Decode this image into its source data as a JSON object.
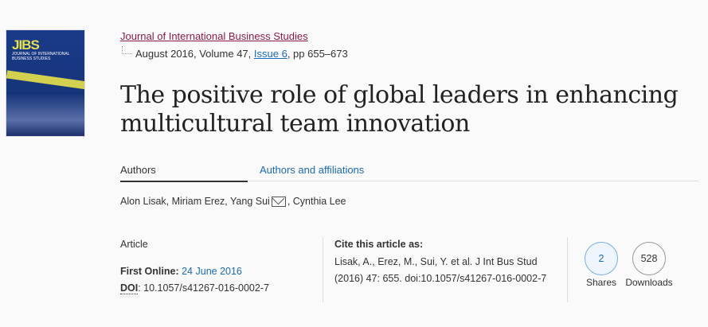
{
  "cover": {
    "abbrev": "JIBS",
    "name": "JOURNAL OF INTERNATIONAL BUSINESS STUDIES"
  },
  "journal": {
    "name": "Journal of International Business Studies",
    "date_volume": "August 2016, Volume 47, ",
    "issue": "Issue 6",
    "pages": ", pp 655–673"
  },
  "title": "The positive role of global leaders in enhancing multicultural team innovation",
  "tabs": [
    {
      "label": "Authors",
      "active": true
    },
    {
      "label": "Authors and affiliations"
    }
  ],
  "authors": {
    "before": "Alon Lisak, Miriam Erez, Yang Sui",
    "after": ", Cynthia Lee"
  },
  "meta": {
    "type": "Article",
    "first_online_label": "First Online:",
    "first_online": "24 June 2016",
    "doi_label": "DOI",
    "doi": ": 10.1057/s41267-016-0002-7"
  },
  "cite": {
    "heading": "Cite this article as:",
    "text": "Lisak, A., Erez, M., Sui, Y. et al. J Int Bus Stud (2016) 47: 655. doi:10.1057/s41267-016-0002-7"
  },
  "metrics": {
    "shares": "2",
    "shares_label": "Shares",
    "downloads": "528",
    "downloads_label": "Downloads"
  }
}
